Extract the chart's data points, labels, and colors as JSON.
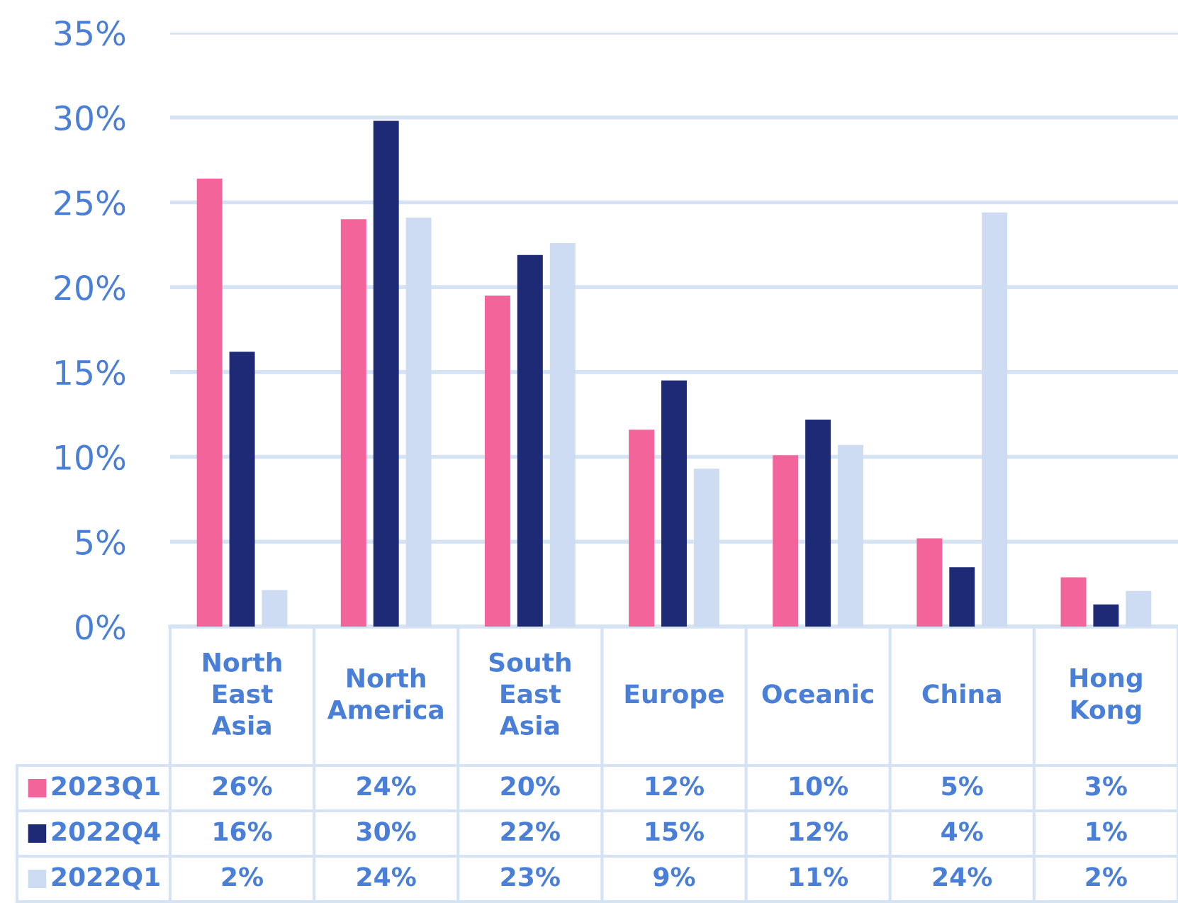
{
  "chart_data": {
    "type": "bar",
    "categories": [
      "North East Asia",
      "North America",
      "South East Asia",
      "Europe",
      "Oceanic",
      "China",
      "Hong Kong"
    ],
    "series": [
      {
        "name": "2023Q1",
        "color": "#f2649a",
        "values": [
          26.4,
          24.0,
          19.5,
          11.6,
          10.1,
          5.2,
          2.9
        ],
        "value_labels": [
          "26%",
          "24%",
          "20%",
          "12%",
          "10%",
          "5%",
          "3%"
        ]
      },
      {
        "name": "2022Q4",
        "color": "#1e2a76",
        "values": [
          16.2,
          29.8,
          21.9,
          14.5,
          12.2,
          3.5,
          1.3
        ],
        "value_labels": [
          "16%",
          "30%",
          "22%",
          "15%",
          "12%",
          "4%",
          "1%"
        ]
      },
      {
        "name": "2022Q1",
        "color": "#cddcf2",
        "values": [
          2.15,
          24.1,
          22.6,
          9.3,
          10.7,
          24.4,
          2.1
        ],
        "value_labels": [
          "2%",
          "24%",
          "23%",
          "9%",
          "11%",
          "24%",
          "2%"
        ]
      }
    ],
    "ylim": [
      0,
      35
    ],
    "yticks": [
      {
        "value": 0,
        "label": "0%"
      },
      {
        "value": 5,
        "label": "5%"
      },
      {
        "value": 10,
        "label": "10%"
      },
      {
        "value": 15,
        "label": "15%"
      },
      {
        "value": 20,
        "label": "20%"
      },
      {
        "value": 25,
        "label": "25%"
      },
      {
        "value": 30,
        "label": "30%"
      },
      {
        "value": 35,
        "label": "35%"
      }
    ],
    "grid": "y",
    "legend": "bottom"
  }
}
